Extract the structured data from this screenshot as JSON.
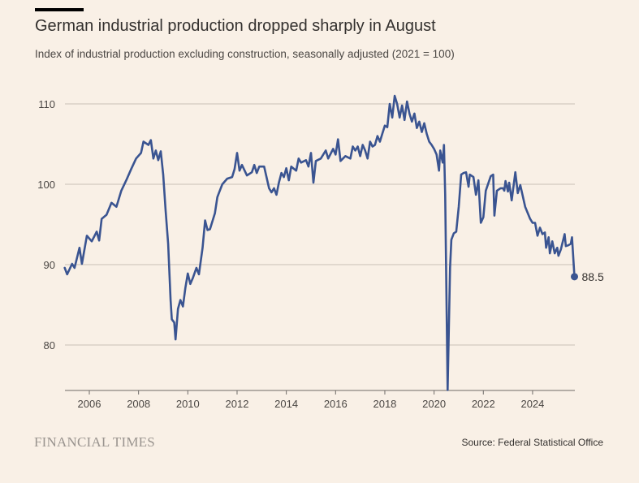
{
  "header": {
    "title": "German industrial production dropped sharply in August",
    "subtitle": "Index of industrial production excluding construction, seasonally adjusted (2021 = 100)"
  },
  "footer": {
    "brand": "FINANCIAL TIMES",
    "source": "Source: Federal Statistical Office"
  },
  "colors": {
    "line": "#3a5491",
    "grid": "#c9c0b7",
    "text": "#4a4643"
  },
  "chart_data": {
    "type": "line",
    "title": "German industrial production dropped sharply in August",
    "xlabel": "",
    "ylabel": "",
    "xlim": [
      2005.0,
      2025.8
    ],
    "ylim": [
      74.3,
      112
    ],
    "grid": true,
    "yticks": [
      80,
      90,
      100,
      110
    ],
    "xticks": [
      2006,
      2008,
      2010,
      2012,
      2014,
      2016,
      2018,
      2020,
      2022,
      2024
    ],
    "end_label": "88.5",
    "series": [
      {
        "name": "Industrial production index",
        "points": [
          [
            2005.0,
            89.6
          ],
          [
            2005.1,
            88.8
          ],
          [
            2005.3,
            90.1
          ],
          [
            2005.4,
            89.6
          ],
          [
            2005.6,
            92.1
          ],
          [
            2005.7,
            90.1
          ],
          [
            2005.9,
            93.6
          ],
          [
            2006.1,
            92.9
          ],
          [
            2006.3,
            94.1
          ],
          [
            2006.4,
            93.0
          ],
          [
            2006.5,
            95.7
          ],
          [
            2006.7,
            96.2
          ],
          [
            2006.9,
            97.7
          ],
          [
            2007.1,
            97.2
          ],
          [
            2007.3,
            99.2
          ],
          [
            2007.5,
            100.5
          ],
          [
            2007.7,
            101.9
          ],
          [
            2007.9,
            103.2
          ],
          [
            2008.1,
            103.9
          ],
          [
            2008.2,
            105.3
          ],
          [
            2008.4,
            104.9
          ],
          [
            2008.5,
            105.5
          ],
          [
            2008.6,
            103.2
          ],
          [
            2008.7,
            104.2
          ],
          [
            2008.8,
            103.0
          ],
          [
            2008.9,
            104.1
          ],
          [
            2009.0,
            101.2
          ],
          [
            2009.1,
            96.7
          ],
          [
            2009.2,
            92.6
          ],
          [
            2009.3,
            85.6
          ],
          [
            2009.35,
            83.2
          ],
          [
            2009.45,
            82.8
          ],
          [
            2009.5,
            80.7
          ],
          [
            2009.6,
            84.5
          ],
          [
            2009.7,
            85.6
          ],
          [
            2009.8,
            84.8
          ],
          [
            2009.9,
            87.1
          ],
          [
            2010.0,
            88.9
          ],
          [
            2010.1,
            87.6
          ],
          [
            2010.2,
            88.3
          ],
          [
            2010.35,
            89.6
          ],
          [
            2010.45,
            88.8
          ],
          [
            2010.6,
            92.1
          ],
          [
            2010.7,
            95.5
          ],
          [
            2010.8,
            94.3
          ],
          [
            2010.9,
            94.4
          ],
          [
            2011.1,
            96.4
          ],
          [
            2011.2,
            98.4
          ],
          [
            2011.3,
            99.2
          ],
          [
            2011.4,
            100.0
          ],
          [
            2011.6,
            100.7
          ],
          [
            2011.8,
            100.9
          ],
          [
            2011.9,
            101.9
          ],
          [
            2012.0,
            103.9
          ],
          [
            2012.1,
            101.7
          ],
          [
            2012.2,
            102.4
          ],
          [
            2012.4,
            101.1
          ],
          [
            2012.6,
            101.5
          ],
          [
            2012.7,
            102.4
          ],
          [
            2012.8,
            101.4
          ],
          [
            2012.9,
            102.2
          ],
          [
            2013.1,
            102.2
          ],
          [
            2013.3,
            99.5
          ],
          [
            2013.4,
            99.0
          ],
          [
            2013.5,
            99.5
          ],
          [
            2013.6,
            98.7
          ],
          [
            2013.7,
            100.2
          ],
          [
            2013.8,
            101.4
          ],
          [
            2013.9,
            100.9
          ],
          [
            2014.0,
            102.0
          ],
          [
            2014.1,
            100.5
          ],
          [
            2014.2,
            102.2
          ],
          [
            2014.4,
            101.7
          ],
          [
            2014.5,
            103.2
          ],
          [
            2014.6,
            102.7
          ],
          [
            2014.8,
            103.0
          ],
          [
            2014.9,
            102.2
          ],
          [
            2015.0,
            103.9
          ],
          [
            2015.1,
            100.2
          ],
          [
            2015.2,
            102.9
          ],
          [
            2015.4,
            103.2
          ],
          [
            2015.6,
            104.2
          ],
          [
            2015.7,
            103.2
          ],
          [
            2015.9,
            104.4
          ],
          [
            2016.0,
            103.7
          ],
          [
            2016.1,
            105.6
          ],
          [
            2016.2,
            102.9
          ],
          [
            2016.4,
            103.5
          ],
          [
            2016.6,
            103.2
          ],
          [
            2016.7,
            104.7
          ],
          [
            2016.8,
            104.2
          ],
          [
            2016.9,
            104.7
          ],
          [
            2017.0,
            103.5
          ],
          [
            2017.1,
            104.9
          ],
          [
            2017.2,
            104.2
          ],
          [
            2017.3,
            103.2
          ],
          [
            2017.4,
            105.3
          ],
          [
            2017.5,
            104.7
          ],
          [
            2017.6,
            104.9
          ],
          [
            2017.7,
            106.0
          ],
          [
            2017.8,
            105.3
          ],
          [
            2017.9,
            106.3
          ],
          [
            2018.0,
            107.3
          ],
          [
            2018.1,
            107.1
          ],
          [
            2018.2,
            110.0
          ],
          [
            2018.3,
            108.3
          ],
          [
            2018.4,
            111.0
          ],
          [
            2018.5,
            110.0
          ],
          [
            2018.6,
            108.3
          ],
          [
            2018.7,
            109.8
          ],
          [
            2018.8,
            108.0
          ],
          [
            2018.9,
            110.3
          ],
          [
            2019.0,
            108.8
          ],
          [
            2019.1,
            107.8
          ],
          [
            2019.2,
            108.8
          ],
          [
            2019.3,
            107.0
          ],
          [
            2019.4,
            107.8
          ],
          [
            2019.5,
            106.5
          ],
          [
            2019.6,
            107.6
          ],
          [
            2019.7,
            106.3
          ],
          [
            2019.8,
            105.3
          ],
          [
            2019.9,
            104.9
          ],
          [
            2020.0,
            104.4
          ],
          [
            2020.1,
            103.7
          ],
          [
            2020.2,
            101.7
          ],
          [
            2020.25,
            104.2
          ],
          [
            2020.35,
            102.7
          ],
          [
            2020.4,
            104.9
          ],
          [
            2020.45,
            98.7
          ],
          [
            2020.55,
            74.4
          ],
          [
            2020.65,
            89.6
          ],
          [
            2020.7,
            93.1
          ],
          [
            2020.8,
            93.9
          ],
          [
            2020.9,
            94.1
          ],
          [
            2021.0,
            97.2
          ],
          [
            2021.1,
            101.2
          ],
          [
            2021.2,
            101.4
          ],
          [
            2021.3,
            101.5
          ],
          [
            2021.4,
            99.7
          ],
          [
            2021.45,
            101.2
          ],
          [
            2021.6,
            100.9
          ],
          [
            2021.7,
            98.7
          ],
          [
            2021.8,
            100.5
          ],
          [
            2021.9,
            95.2
          ],
          [
            2022.0,
            95.9
          ],
          [
            2022.1,
            99.2
          ],
          [
            2022.3,
            101.0
          ],
          [
            2022.4,
            101.2
          ],
          [
            2022.45,
            96.1
          ],
          [
            2022.55,
            99.2
          ],
          [
            2022.7,
            99.5
          ],
          [
            2022.8,
            99.5
          ],
          [
            2022.85,
            99.2
          ],
          [
            2022.9,
            100.4
          ],
          [
            2023.0,
            99.1
          ],
          [
            2023.05,
            100.2
          ],
          [
            2023.15,
            98.0
          ],
          [
            2023.3,
            101.5
          ],
          [
            2023.4,
            98.9
          ],
          [
            2023.5,
            99.9
          ],
          [
            2023.7,
            97.2
          ],
          [
            2023.9,
            95.7
          ],
          [
            2024.0,
            95.2
          ],
          [
            2024.1,
            95.2
          ],
          [
            2024.2,
            93.6
          ],
          [
            2024.3,
            94.6
          ],
          [
            2024.4,
            93.8
          ],
          [
            2024.5,
            94.0
          ],
          [
            2024.55,
            92.1
          ],
          [
            2024.65,
            93.4
          ],
          [
            2024.7,
            91.4
          ],
          [
            2024.8,
            92.9
          ],
          [
            2024.9,
            91.4
          ],
          [
            2025.0,
            92.1
          ],
          [
            2025.05,
            91.1
          ],
          [
            2025.15,
            91.9
          ],
          [
            2025.3,
            93.8
          ],
          [
            2025.35,
            92.3
          ],
          [
            2025.45,
            92.4
          ],
          [
            2025.55,
            92.6
          ],
          [
            2025.6,
            93.4
          ],
          [
            2025.7,
            88.5
          ]
        ]
      }
    ]
  }
}
